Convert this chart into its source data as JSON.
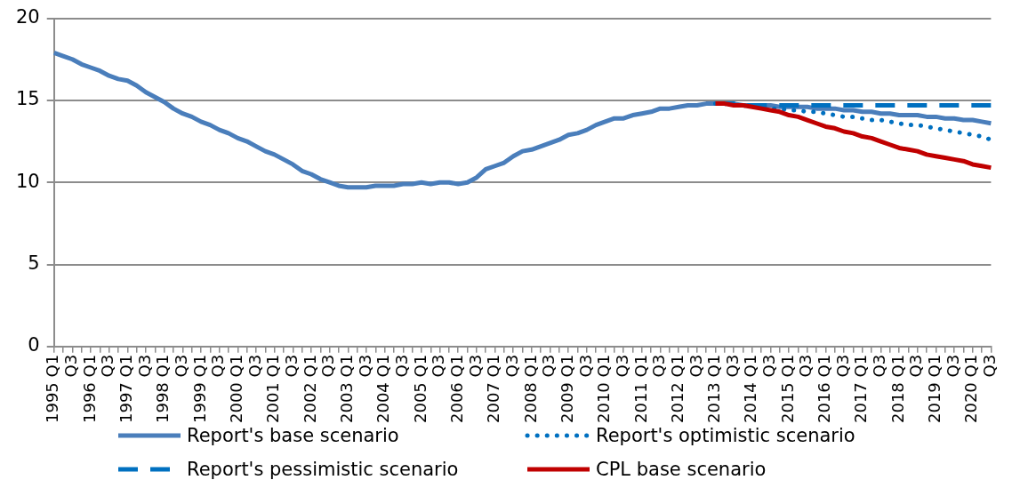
{
  "chart_data": {
    "type": "line",
    "categories": [
      "1995 Q1",
      null,
      "Q3",
      null,
      "1996 Q1",
      null,
      "Q3",
      null,
      "1997 Q1",
      null,
      "Q3",
      null,
      "1998 Q1",
      null,
      "Q3",
      null,
      "1999 Q1",
      null,
      "Q3",
      null,
      "2000 Q1",
      null,
      "Q3",
      null,
      "2001 Q1",
      null,
      "Q3",
      null,
      "2002 Q1",
      null,
      "Q3",
      null,
      "2003 Q1",
      null,
      "Q3",
      null,
      "2004 Q1",
      null,
      "Q3",
      null,
      "2005 Q1",
      null,
      "Q3",
      null,
      "2006 Q1",
      null,
      "Q3",
      null,
      "2007 Q1",
      null,
      "Q3",
      null,
      "2008 Q1",
      null,
      "Q3",
      null,
      "2009 Q1",
      null,
      "Q3",
      null,
      "2010 Q1",
      null,
      "Q3",
      null,
      "2011 Q1",
      null,
      "Q3",
      null,
      "2012 Q1",
      null,
      "Q3",
      null,
      "2013 Q1",
      null,
      "Q3",
      null,
      "2014 Q1",
      null,
      "Q3",
      null,
      "2015 Q1",
      null,
      "Q3",
      null,
      "2016 Q1",
      null,
      "Q3",
      null,
      "2017 Q1",
      null,
      "Q3",
      null,
      "2018 Q1",
      null,
      "Q3",
      null,
      "2019 Q1",
      null,
      "Q3",
      null,
      "2020 Q1",
      null,
      "Q3"
    ],
    "series": [
      {
        "name": "Report's base scenario",
        "color": "#4a7ebb",
        "line_style": "solid",
        "values": [
          17.9,
          17.7,
          17.5,
          17.2,
          17.0,
          16.8,
          16.5,
          16.3,
          16.2,
          15.9,
          15.5,
          15.2,
          14.9,
          14.5,
          14.2,
          14.0,
          13.7,
          13.5,
          13.2,
          13.0,
          12.7,
          12.5,
          12.2,
          11.9,
          11.7,
          11.4,
          11.1,
          10.7,
          10.5,
          10.2,
          10.0,
          9.8,
          9.7,
          9.7,
          9.7,
          9.8,
          9.8,
          9.8,
          9.9,
          9.9,
          10.0,
          9.9,
          10.0,
          10.0,
          9.9,
          10.0,
          10.3,
          10.8,
          11.0,
          11.2,
          11.6,
          11.9,
          12.0,
          12.2,
          12.4,
          12.6,
          12.9,
          13.0,
          13.2,
          13.5,
          13.7,
          13.9,
          13.9,
          14.1,
          14.2,
          14.3,
          14.5,
          14.5,
          14.6,
          14.7,
          14.7,
          14.8,
          14.8,
          14.8,
          14.8,
          14.7,
          14.7,
          14.7,
          14.7,
          14.6,
          14.6,
          14.6,
          14.6,
          14.5,
          14.5,
          14.5,
          14.4,
          14.4,
          14.3,
          14.3,
          14.2,
          14.2,
          14.1,
          14.1,
          14.1,
          14.0,
          14.0,
          13.9,
          13.9,
          13.8,
          13.8,
          13.7,
          13.6
        ]
      },
      {
        "name": "Report's optimistic scenario",
        "color": "#0070c0",
        "line_style": "dotted",
        "values": [
          null,
          null,
          null,
          null,
          null,
          null,
          null,
          null,
          null,
          null,
          null,
          null,
          null,
          null,
          null,
          null,
          null,
          null,
          null,
          null,
          null,
          null,
          null,
          null,
          null,
          null,
          null,
          null,
          null,
          null,
          null,
          null,
          null,
          null,
          null,
          null,
          null,
          null,
          null,
          null,
          null,
          null,
          null,
          null,
          null,
          null,
          null,
          null,
          null,
          null,
          null,
          null,
          null,
          null,
          null,
          null,
          null,
          null,
          null,
          null,
          null,
          null,
          null,
          null,
          null,
          null,
          null,
          null,
          null,
          null,
          null,
          null,
          14.8,
          14.8,
          14.7,
          14.7,
          14.6,
          14.6,
          14.5,
          14.5,
          14.4,
          14.4,
          14.3,
          14.3,
          14.2,
          14.1,
          14.0,
          14.0,
          13.9,
          13.8,
          13.8,
          13.7,
          13.6,
          13.5,
          13.5,
          13.4,
          13.3,
          13.2,
          13.1,
          13.0,
          12.9,
          12.8,
          12.6
        ]
      },
      {
        "name": "Report's pessimistic scenario",
        "color": "#0070c0",
        "line_style": "dashed",
        "values": [
          null,
          null,
          null,
          null,
          null,
          null,
          null,
          null,
          null,
          null,
          null,
          null,
          null,
          null,
          null,
          null,
          null,
          null,
          null,
          null,
          null,
          null,
          null,
          null,
          null,
          null,
          null,
          null,
          null,
          null,
          null,
          null,
          null,
          null,
          null,
          null,
          null,
          null,
          null,
          null,
          null,
          null,
          null,
          null,
          null,
          null,
          null,
          null,
          null,
          null,
          null,
          null,
          null,
          null,
          null,
          null,
          null,
          null,
          null,
          null,
          null,
          null,
          null,
          null,
          null,
          null,
          null,
          null,
          null,
          null,
          null,
          null,
          14.8,
          14.8,
          14.8,
          14.7,
          14.7,
          14.7,
          14.7,
          14.7,
          14.7,
          14.7,
          14.7,
          14.7,
          14.7,
          14.7,
          14.7,
          14.7,
          14.7,
          14.7,
          14.7,
          14.7,
          14.7,
          14.7,
          14.7,
          14.7,
          14.7,
          14.7,
          14.7,
          14.7,
          14.7,
          14.7,
          14.7
        ]
      },
      {
        "name": "CPL base scenario",
        "color": "#c00000",
        "line_style": "solid",
        "values": [
          null,
          null,
          null,
          null,
          null,
          null,
          null,
          null,
          null,
          null,
          null,
          null,
          null,
          null,
          null,
          null,
          null,
          null,
          null,
          null,
          null,
          null,
          null,
          null,
          null,
          null,
          null,
          null,
          null,
          null,
          null,
          null,
          null,
          null,
          null,
          null,
          null,
          null,
          null,
          null,
          null,
          null,
          null,
          null,
          null,
          null,
          null,
          null,
          null,
          null,
          null,
          null,
          null,
          null,
          null,
          null,
          null,
          null,
          null,
          null,
          null,
          null,
          null,
          null,
          null,
          null,
          null,
          null,
          null,
          null,
          null,
          null,
          14.8,
          14.8,
          14.7,
          14.7,
          14.6,
          14.5,
          14.4,
          14.3,
          14.1,
          14.0,
          13.8,
          13.6,
          13.4,
          13.3,
          13.1,
          13.0,
          12.8,
          12.7,
          12.5,
          12.3,
          12.1,
          12.0,
          11.9,
          11.7,
          11.6,
          11.5,
          11.4,
          11.3,
          11.1,
          11.0,
          10.9
        ]
      }
    ],
    "ylim": [
      0,
      20
    ],
    "yticks": [
      0,
      5,
      10,
      15,
      20
    ],
    "grid": "y",
    "legend": "bottom",
    "marker": "none"
  }
}
